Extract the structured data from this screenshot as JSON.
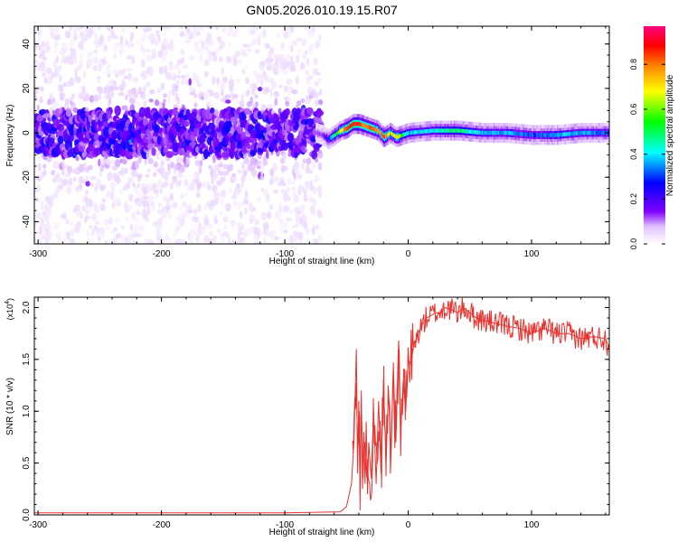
{
  "title": "GN05.2026.010.19.15.R07",
  "chart_data": [
    {
      "type": "heatmap",
      "xlabel": "Height of straight line (km)",
      "ylabel": "Frequency (Hz)",
      "xlim": [
        -303,
        163
      ],
      "ylim": [
        -50,
        48
      ],
      "x_ticks": [
        -300,
        -200,
        -100,
        0,
        100
      ],
      "y_ticks": [
        40,
        20,
        0,
        -20,
        -40
      ],
      "x_tick_labels": [
        "-300",
        "-200",
        "-100",
        "0",
        "100"
      ],
      "y_tick_labels": [
        "40",
        "20",
        "0",
        "-20",
        "-40"
      ],
      "colorbar": {
        "label": "Normalized spectral amplitude",
        "range": [
          0,
          0.97
        ],
        "ticks": [
          0.0,
          0.2,
          0.4,
          0.6,
          0.8
        ],
        "tick_labels": [
          "0.0",
          "0.2",
          "0.4",
          "0.6",
          "0.8"
        ],
        "colormap": [
          "#ffffff",
          "#e0c0ff",
          "#8000ff",
          "#0000ff",
          "#00ffff",
          "#00ff00",
          "#ffff00",
          "#ff8000",
          "#ff0000",
          "#ff0080"
        ]
      },
      "ridge": {
        "x": [
          -75,
          -70,
          -65,
          -60,
          -55,
          -50,
          -45,
          -40,
          -35,
          -30,
          -25,
          -20,
          -15,
          -10,
          -5,
          0,
          20,
          40,
          60,
          80,
          100,
          120,
          140,
          163
        ],
        "y": [
          0,
          -1,
          -3,
          -1,
          1,
          2,
          4,
          4,
          3,
          2,
          1,
          -2,
          0,
          -2,
          -1,
          0,
          1,
          1,
          0,
          0,
          -1,
          -1,
          0,
          0
        ],
        "amplitude": [
          0.15,
          0.2,
          0.35,
          0.5,
          0.65,
          0.8,
          0.85,
          0.8,
          0.75,
          0.8,
          0.7,
          0.8,
          0.6,
          0.7,
          0.5,
          0.4,
          0.45,
          0.5,
          0.4,
          0.4,
          0.35,
          0.4,
          0.4,
          0.35
        ]
      }
    },
    {
      "type": "line",
      "xlabel": "Height of straight line (km)",
      "ylabel": "SNR (10 * v/v)",
      "y_multiplier_label": "(x10",
      "y_multiplier_exp": "4",
      "xlim": [
        -303,
        163
      ],
      "ylim": [
        0,
        2.1
      ],
      "x_ticks": [
        -300,
        -200,
        -100,
        0,
        100
      ],
      "y_ticks": [
        0.0,
        0.5,
        1.0,
        1.5,
        2.0
      ],
      "x_tick_labels": [
        "-300",
        "-200",
        "-100",
        "0",
        "100"
      ],
      "y_tick_labels": [
        "0.0",
        "0.5",
        "1.0",
        "1.5",
        "2.0"
      ],
      "color": "#e8322e",
      "series": [
        {
          "x": [
            -303,
            -100,
            -55,
            -50,
            -46,
            -44,
            -42,
            -41,
            -40,
            -39,
            -38,
            -37,
            -36,
            -35,
            -34,
            -33,
            -32,
            -30,
            -28,
            -26,
            -24,
            -22,
            -20,
            -18,
            -16,
            -14,
            -12,
            -10,
            -8,
            -6,
            -4,
            -2,
            0,
            2,
            4,
            6,
            8,
            10,
            12,
            15,
            18,
            22,
            26,
            30,
            35,
            40,
            45,
            50,
            55,
            60,
            70,
            80,
            90,
            100,
            110,
            120,
            130,
            140,
            150,
            160,
            163
          ],
          "y": [
            0.02,
            0.02,
            0.03,
            0.08,
            0.3,
            0.7,
            1.6,
            0.4,
            1.1,
            0.2,
            1.2,
            0.25,
            0.8,
            0.3,
            0.9,
            0.2,
            0.7,
            0.35,
            1.0,
            0.3,
            1.1,
            0.4,
            1.3,
            0.5,
            1.2,
            0.6,
            1.4,
            0.7,
            1.6,
            0.8,
            1.3,
            1.0,
            1.5,
            1.45,
            1.6,
            1.65,
            1.75,
            1.8,
            1.85,
            1.9,
            1.92,
            1.95,
            1.95,
            2.0,
            1.98,
            1.95,
            2.0,
            1.95,
            1.9,
            1.88,
            1.85,
            1.82,
            1.8,
            1.75,
            1.8,
            1.75,
            1.75,
            1.7,
            1.72,
            1.7,
            1.6
          ]
        }
      ]
    }
  ]
}
